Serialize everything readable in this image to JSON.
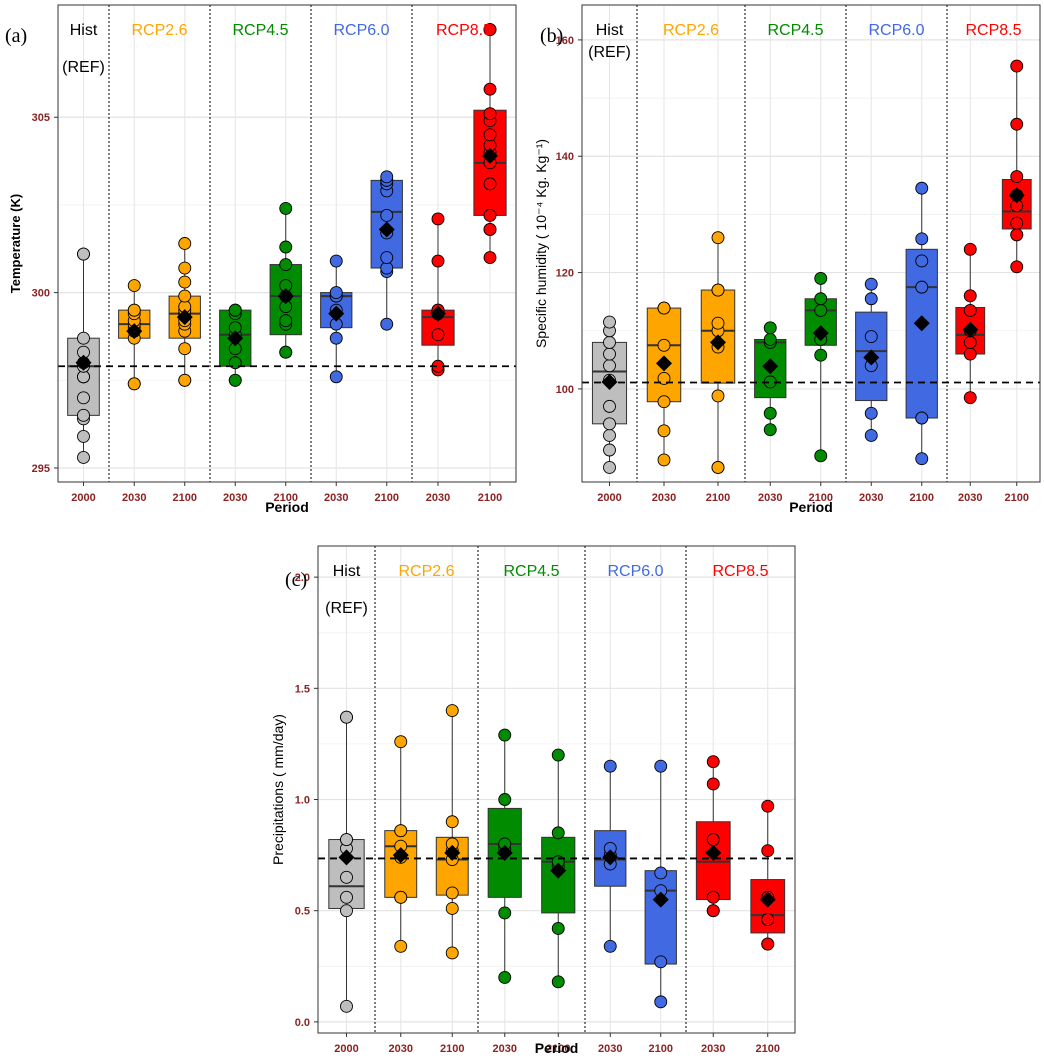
{
  "scenarios": [
    {
      "key": "hist",
      "label": "Hist",
      "sublabel": "(REF)"
    },
    {
      "key": "rcp26",
      "label": "RCP2.6",
      "sublabel": ""
    },
    {
      "key": "rcp45",
      "label": "RCP4.5",
      "sublabel": ""
    },
    {
      "key": "rcp60",
      "label": "RCP6.0",
      "sublabel": ""
    },
    {
      "key": "rcp85",
      "label": "RCP8.5",
      "sublabel": ""
    }
  ],
  "colors": {
    "hist": "#bebebe",
    "rcp26": "#ffa500",
    "rcp45": "#008b00",
    "rcp60": "#4169e1",
    "rcp85": "#ff0000",
    "scenario_text": {
      "hist": "#000000",
      "rcp26": "#ffa500",
      "rcp45": "#008b00",
      "rcp60": "#4169e1",
      "rcp85": "#ff0000"
    },
    "tick_label": "#8b2323",
    "grid": "#e6e6e6",
    "mean_marker": "#000000"
  },
  "chart_data": [
    {
      "panel": "(a)",
      "type": "box",
      "xlabel": "Period",
      "ylabel": "Temperature (K)",
      "ylim": [
        294.6,
        308.2
      ],
      "yticks": [
        295,
        300,
        305
      ],
      "reference_line": 297.9,
      "grid": true,
      "categories": [
        "2000",
        "2030",
        "2100",
        "2030",
        "2100",
        "2030",
        "2100",
        "2030",
        "2100"
      ],
      "groups": [
        {
          "scenario": "hist",
          "year": "2000",
          "q1": 296.5,
          "median": 297.9,
          "q3": 298.7,
          "wlo": 295.3,
          "whi": 301.1,
          "mean": 298.0,
          "points": [
            295.3,
            295.9,
            296.4,
            296.5,
            297.0,
            297.6,
            297.6,
            297.6,
            297.9,
            298.0,
            298.3,
            298.7,
            301.1,
            301.1
          ]
        },
        {
          "scenario": "rcp26",
          "year": "2030",
          "q1": 298.7,
          "median": 299.1,
          "q3": 299.5,
          "wlo": 297.4,
          "whi": 300.2,
          "mean": 298.9,
          "points": [
            297.4,
            297.4,
            298.7,
            298.9,
            299.0,
            299.1,
            299.2,
            299.4,
            299.5,
            299.5,
            300.2
          ]
        },
        {
          "scenario": "rcp26",
          "year": "2100",
          "q1": 298.7,
          "median": 299.4,
          "q3": 299.9,
          "wlo": 297.5,
          "whi": 301.4,
          "mean": 299.3,
          "points": [
            297.5,
            297.5,
            298.4,
            298.9,
            299.1,
            299.2,
            299.4,
            299.5,
            299.6,
            299.9,
            300.3,
            300.7,
            301.4
          ]
        },
        {
          "scenario": "rcp45",
          "year": "2030",
          "q1": 297.9,
          "median": 298.8,
          "q3": 299.5,
          "wlo": 297.5,
          "whi": 299.5,
          "mean": 298.7,
          "points": [
            297.5,
            297.5,
            298.0,
            298.4,
            298.8,
            299.0,
            299.4,
            299.5,
            299.5,
            299.5
          ]
        },
        {
          "scenario": "rcp45",
          "year": "2100",
          "q1": 298.8,
          "median": 299.9,
          "q3": 300.8,
          "wlo": 298.3,
          "whi": 302.4,
          "mean": 299.9,
          "points": [
            298.3,
            298.3,
            299.1,
            299.2,
            299.6,
            299.9,
            300.2,
            300.8,
            301.3,
            302.4
          ]
        },
        {
          "scenario": "rcp60",
          "year": "2030",
          "q1": 299.0,
          "median": 299.9,
          "q3": 300.0,
          "wlo": 297.6,
          "whi": 300.9,
          "mean": 299.4,
          "points": [
            297.6,
            298.7,
            299.1,
            299.5,
            299.9,
            299.9,
            300.0,
            300.9
          ]
        },
        {
          "scenario": "rcp60",
          "year": "2100",
          "q1": 300.7,
          "median": 302.3,
          "q3": 303.2,
          "wlo": 299.1,
          "whi": 303.4,
          "mean": 301.8,
          "points": [
            299.1,
            300.6,
            300.7,
            301.0,
            301.7,
            302.2,
            302.9,
            303.1,
            303.2,
            303.2,
            303.3
          ]
        },
        {
          "scenario": "rcp85",
          "year": "2030",
          "q1": 298.5,
          "median": 299.3,
          "q3": 299.5,
          "wlo": 297.8,
          "whi": 302.1,
          "mean": 299.4,
          "points": [
            297.8,
            297.8,
            297.9,
            298.8,
            299.4,
            299.4,
            299.4,
            299.5,
            299.5,
            299.5,
            300.9,
            302.1
          ]
        },
        {
          "scenario": "rcp85",
          "year": "2100",
          "q1": 302.2,
          "median": 303.7,
          "q3": 305.2,
          "wlo": 301.0,
          "whi": 307.5,
          "mean": 303.9,
          "points": [
            301.0,
            301.8,
            301.8,
            302.2,
            303.1,
            303.7,
            304.0,
            304.2,
            304.5,
            304.9,
            305.1,
            305.8,
            307.5,
            307.5
          ]
        }
      ]
    },
    {
      "panel": "(b)",
      "type": "box",
      "xlabel": "Period",
      "ylabel": "Specific humidity ( 10⁻⁴ Kg. Kg⁻¹)",
      "ylim": [
        84,
        166
      ],
      "yticks": [
        100,
        120,
        140,
        160
      ],
      "reference_line": 101.1,
      "grid": true,
      "categories": [
        "2000",
        "2030",
        "2100",
        "2030",
        "2100",
        "2030",
        "2100",
        "2030",
        "2100"
      ],
      "groups": [
        {
          "scenario": "hist",
          "year": "2000",
          "q1": 94.0,
          "median": 103.0,
          "q3": 108.0,
          "wlo": 86.5,
          "whi": 111.5,
          "mean": 101.2,
          "points": [
            86.5,
            89.5,
            92.0,
            94.0,
            97.0,
            101.5,
            104.0,
            106.0,
            108.0,
            110.0,
            111.5
          ]
        },
        {
          "scenario": "rcp26",
          "year": "2030",
          "q1": 97.8,
          "median": 107.5,
          "q3": 113.9,
          "wlo": 87.8,
          "whi": 113.9,
          "mean": 104.4,
          "points": [
            87.8,
            92.8,
            97.8,
            101.8,
            107.5,
            113.9,
            113.9
          ]
        },
        {
          "scenario": "rcp26",
          "year": "2100",
          "q1": 101.0,
          "median": 110.0,
          "q3": 117.0,
          "wlo": 86.5,
          "whi": 126.0,
          "mean": 108.0,
          "points": [
            86.5,
            86.5,
            98.8,
            107.2,
            110.0,
            111.3,
            117.0,
            117.0,
            126.0
          ]
        },
        {
          "scenario": "rcp45",
          "year": "2030",
          "q1": 98.5,
          "median": 108.0,
          "q3": 108.5,
          "wlo": 93.0,
          "whi": 110.5,
          "mean": 103.9,
          "points": [
            93.0,
            95.8,
            101.2,
            108.0,
            108.5,
            110.5
          ]
        },
        {
          "scenario": "rcp45",
          "year": "2100",
          "q1": 107.5,
          "median": 113.5,
          "q3": 115.5,
          "wlo": 88.5,
          "whi": 119.0,
          "mean": 109.6,
          "points": [
            88.5,
            105.8,
            108.5,
            113.5,
            115.5,
            119.0
          ]
        },
        {
          "scenario": "rcp60",
          "year": "2030",
          "q1": 98.0,
          "median": 106.5,
          "q3": 113.2,
          "wlo": 92.0,
          "whi": 118.0,
          "mean": 105.4,
          "points": [
            92.0,
            95.8,
            104.0,
            109.0,
            115.5,
            118.0
          ]
        },
        {
          "scenario": "rcp60",
          "year": "2100",
          "q1": 95.0,
          "median": 117.5,
          "q3": 124.0,
          "wlo": 88.0,
          "whi": 134.5,
          "mean": 111.3,
          "points": [
            88.0,
            95.0,
            95.0,
            117.5,
            122.0,
            125.8,
            134.5
          ]
        },
        {
          "scenario": "rcp85",
          "year": "2030",
          "q1": 106.0,
          "median": 109.3,
          "q3": 114.0,
          "wlo": 98.5,
          "whi": 124.0,
          "mean": 110.2,
          "points": [
            98.5,
            106.0,
            108.0,
            110.0,
            113.5,
            116.0,
            124.0
          ]
        },
        {
          "scenario": "rcp85",
          "year": "2100",
          "q1": 127.5,
          "median": 130.5,
          "q3": 136.0,
          "wlo": 121.0,
          "whi": 155.5,
          "mean": 133.3,
          "points": [
            121.0,
            126.5,
            126.5,
            128.5,
            131.5,
            133.3,
            136.5,
            145.5,
            155.5
          ]
        }
      ]
    },
    {
      "panel": "(c)",
      "type": "box",
      "xlabel": "Period",
      "ylabel": "Precipitations ( mm/day)",
      "ylim": [
        -0.05,
        2.14
      ],
      "yticks": [
        0.0,
        0.5,
        1.0,
        1.5,
        2.0
      ],
      "ytick_labels": [
        "0.0",
        "0.5",
        "1.0",
        "1.5",
        "2.0"
      ],
      "reference_line": 0.735,
      "grid": true,
      "categories": [
        "2000",
        "2030",
        "2100",
        "2030",
        "2100",
        "2030",
        "2100",
        "2030",
        "2100"
      ],
      "groups": [
        {
          "scenario": "hist",
          "year": "2000",
          "q1": 0.51,
          "median": 0.61,
          "q3": 0.82,
          "wlo": 0.07,
          "whi": 1.37,
          "mean": 0.74,
          "points": [
            0.07,
            0.5,
            0.56,
            0.65,
            0.78,
            0.82,
            0.82,
            1.37,
            1.37
          ]
        },
        {
          "scenario": "rcp26",
          "year": "2030",
          "q1": 0.56,
          "median": 0.79,
          "q3": 0.86,
          "wlo": 0.34,
          "whi": 1.26,
          "mean": 0.75,
          "points": [
            0.34,
            0.56,
            0.56,
            0.74,
            0.79,
            0.86,
            0.86,
            1.26
          ]
        },
        {
          "scenario": "rcp26",
          "year": "2100",
          "q1": 0.57,
          "median": 0.73,
          "q3": 0.83,
          "wlo": 0.31,
          "whi": 1.4,
          "mean": 0.76,
          "points": [
            0.31,
            0.51,
            0.58,
            0.73,
            0.77,
            0.8,
            0.9,
            1.4
          ]
        },
        {
          "scenario": "rcp45",
          "year": "2030",
          "q1": 0.56,
          "median": 0.8,
          "q3": 0.96,
          "wlo": 0.2,
          "whi": 1.29,
          "mean": 0.76,
          "points": [
            0.2,
            0.49,
            0.78,
            0.8,
            1.0,
            1.29
          ]
        },
        {
          "scenario": "rcp45",
          "year": "2100",
          "q1": 0.49,
          "median": 0.72,
          "q3": 0.83,
          "wlo": 0.18,
          "whi": 1.2,
          "mean": 0.68,
          "points": [
            0.18,
            0.42,
            0.7,
            0.72,
            0.85,
            1.2
          ]
        },
        {
          "scenario": "rcp60",
          "year": "2030",
          "q1": 0.61,
          "median": 0.73,
          "q3": 0.86,
          "wlo": 0.34,
          "whi": 1.15,
          "mean": 0.74,
          "points": [
            0.34,
            0.71,
            0.75,
            0.78,
            1.15
          ]
        },
        {
          "scenario": "rcp60",
          "year": "2100",
          "q1": 0.26,
          "median": 0.59,
          "q3": 0.68,
          "wlo": 0.09,
          "whi": 1.15,
          "mean": 0.55,
          "points": [
            0.09,
            0.27,
            0.59,
            0.67,
            1.15
          ]
        },
        {
          "scenario": "rcp85",
          "year": "2030",
          "q1": 0.55,
          "median": 0.72,
          "q3": 0.9,
          "wlo": 0.5,
          "whi": 1.17,
          "mean": 0.76,
          "points": [
            0.5,
            0.5,
            0.56,
            0.82,
            1.07,
            1.17
          ]
        },
        {
          "scenario": "rcp85",
          "year": "2100",
          "q1": 0.4,
          "median": 0.48,
          "q3": 0.64,
          "wlo": 0.35,
          "whi": 0.97,
          "mean": 0.55,
          "points": [
            0.35,
            0.35,
            0.46,
            0.56,
            0.77,
            0.97
          ]
        }
      ]
    }
  ]
}
